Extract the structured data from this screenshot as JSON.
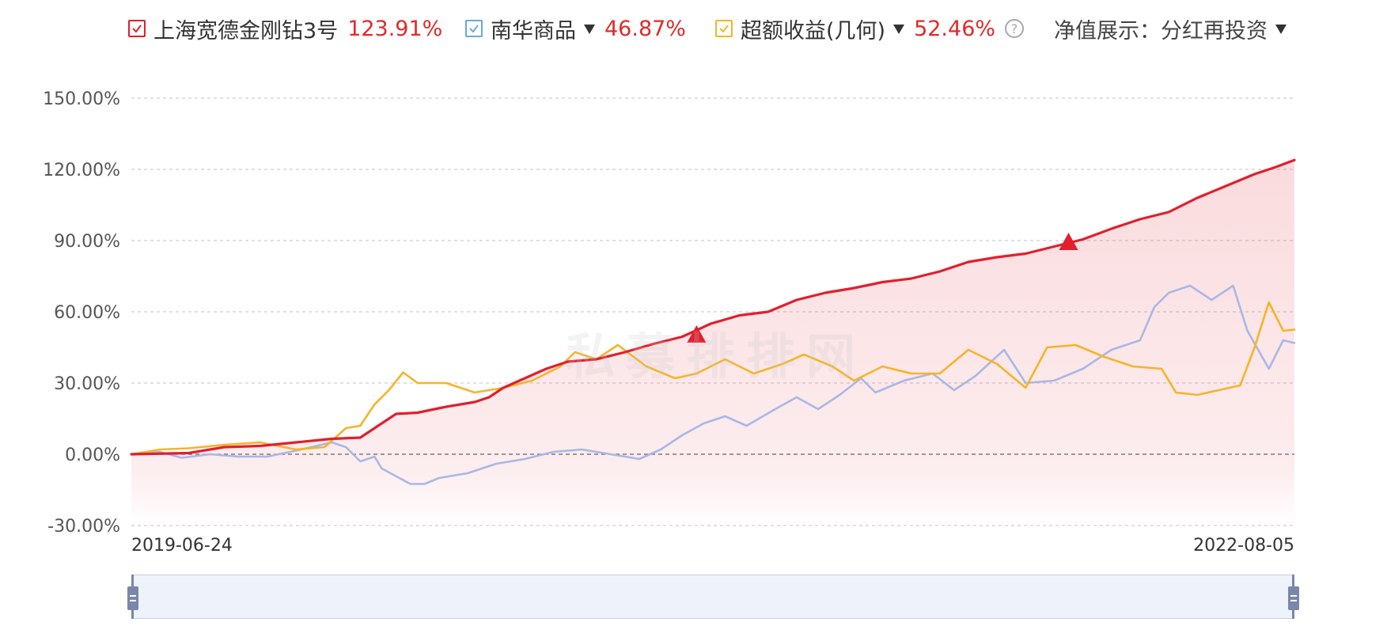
{
  "legend": {
    "fund": {
      "name": "上海宽德金刚钻3号",
      "value": "123.91%",
      "color": "#e0202e"
    },
    "index": {
      "name": "南华商品",
      "value": "46.87%",
      "color": "#a8b8e6",
      "checkbox_color": "#6aa8e0"
    },
    "excess": {
      "name": "超额收益(几何)",
      "value": "52.46%",
      "color": "#f5b42a"
    },
    "help_icon": "question-circle-icon",
    "nav_label": "净值展示：",
    "nav_value": "分红再投资"
  },
  "watermark": "私募排排网",
  "chart_data": {
    "type": "line",
    "xlabel": "",
    "ylabel": "",
    "x_start": "2019-06-24",
    "x_end": "2022-08-05",
    "x_tick_labels": [
      "2019-06-24",
      "2022-08-05"
    ],
    "ylim": [
      -30,
      150
    ],
    "y_ticks": [
      150,
      120,
      90,
      60,
      30,
      0,
      -30
    ],
    "y_tick_labels": [
      "150.00%",
      "120.00%",
      "90.00%",
      "60.00%",
      "30.00%",
      "0.00%",
      "-30.00%"
    ],
    "grid": true,
    "legend_position": "top",
    "markers": [
      {
        "series": "上海宽德金刚钻3号",
        "x": "2020-12-28",
        "y": 50,
        "shape": "triangle"
      },
      {
        "series": "上海宽德金刚钻3号",
        "x": "2021-12-27",
        "y": 89,
        "shape": "triangle"
      }
    ],
    "series": [
      {
        "name": "上海宽德金刚钻3号",
        "color": "#e0202e",
        "fill": true,
        "points": [
          [
            "2019-06-24",
            0
          ],
          [
            "2019-08-19",
            0.5
          ],
          [
            "2019-09-23",
            3
          ],
          [
            "2019-10-28",
            3.5
          ],
          [
            "2019-12-02",
            5
          ],
          [
            "2020-01-06",
            6.5
          ],
          [
            "2020-02-03",
            7
          ],
          [
            "2020-02-17",
            11
          ],
          [
            "2020-03-09",
            17
          ],
          [
            "2020-03-30",
            17.5
          ],
          [
            "2020-04-27",
            20
          ],
          [
            "2020-05-25",
            22
          ],
          [
            "2020-06-08",
            24
          ],
          [
            "2020-06-22",
            28
          ],
          [
            "2020-07-13",
            32
          ],
          [
            "2020-08-03",
            36
          ],
          [
            "2020-08-24",
            39
          ],
          [
            "2020-09-21",
            40
          ],
          [
            "2020-10-19",
            43
          ],
          [
            "2020-11-16",
            46.5
          ],
          [
            "2020-12-14",
            49.5
          ],
          [
            "2021-01-11",
            55
          ],
          [
            "2021-02-08",
            58.5
          ],
          [
            "2021-03-08",
            60
          ],
          [
            "2021-04-05",
            65
          ],
          [
            "2021-05-03",
            68
          ],
          [
            "2021-05-31",
            70
          ],
          [
            "2021-06-28",
            72.5
          ],
          [
            "2021-07-26",
            74
          ],
          [
            "2021-08-23",
            77
          ],
          [
            "2021-09-20",
            81
          ],
          [
            "2021-10-18",
            83
          ],
          [
            "2021-11-15",
            84.5
          ],
          [
            "2021-12-13",
            87.5
          ],
          [
            "2022-01-10",
            90.5
          ],
          [
            "2022-02-07",
            95
          ],
          [
            "2022-03-07",
            99
          ],
          [
            "2022-04-04",
            102
          ],
          [
            "2022-05-02",
            108
          ],
          [
            "2022-05-30",
            113
          ],
          [
            "2022-06-27",
            118
          ],
          [
            "2022-07-18",
            121
          ],
          [
            "2022-08-05",
            123.91
          ]
        ]
      },
      {
        "name": "南华商品",
        "color": "#a8b8e6",
        "fill": false,
        "points": [
          [
            "2019-06-24",
            0
          ],
          [
            "2019-07-22",
            1
          ],
          [
            "2019-08-12",
            -1.5
          ],
          [
            "2019-09-09",
            0
          ],
          [
            "2019-10-07",
            -1
          ],
          [
            "2019-11-04",
            -1
          ],
          [
            "2019-12-02",
            1.5
          ],
          [
            "2020-01-06",
            5
          ],
          [
            "2020-01-20",
            3
          ],
          [
            "2020-02-03",
            -3
          ],
          [
            "2020-02-17",
            -1
          ],
          [
            "2020-02-24",
            -6
          ],
          [
            "2020-03-23",
            -12.5
          ],
          [
            "2020-04-06",
            -12.5
          ],
          [
            "2020-04-20",
            -10
          ],
          [
            "2020-05-18",
            -8
          ],
          [
            "2020-06-15",
            -4
          ],
          [
            "2020-07-13",
            -2
          ],
          [
            "2020-08-10",
            1
          ],
          [
            "2020-09-07",
            2
          ],
          [
            "2020-10-05",
            0
          ],
          [
            "2020-11-02",
            -2
          ],
          [
            "2020-11-23",
            2
          ],
          [
            "2020-12-14",
            8
          ],
          [
            "2021-01-04",
            13
          ],
          [
            "2021-01-25",
            16
          ],
          [
            "2021-02-15",
            12
          ],
          [
            "2021-03-15",
            19
          ],
          [
            "2021-04-05",
            24
          ],
          [
            "2021-04-26",
            19
          ],
          [
            "2021-05-17",
            25
          ],
          [
            "2021-06-07",
            32
          ],
          [
            "2021-06-21",
            26
          ],
          [
            "2021-07-19",
            31
          ],
          [
            "2021-08-16",
            34
          ],
          [
            "2021-09-06",
            27
          ],
          [
            "2021-09-27",
            33
          ],
          [
            "2021-10-25",
            44
          ],
          [
            "2021-11-15",
            30
          ],
          [
            "2021-12-13",
            31
          ],
          [
            "2022-01-10",
            36
          ],
          [
            "2022-02-07",
            44
          ],
          [
            "2022-03-07",
            48
          ],
          [
            "2022-03-21",
            62
          ],
          [
            "2022-04-04",
            68
          ],
          [
            "2022-04-25",
            71
          ],
          [
            "2022-05-16",
            65
          ],
          [
            "2022-06-06",
            71
          ],
          [
            "2022-06-20",
            52
          ],
          [
            "2022-07-11",
            36
          ],
          [
            "2022-07-25",
            48
          ],
          [
            "2022-08-05",
            46.87
          ]
        ]
      },
      {
        "name": "超额收益(几何)",
        "color": "#f5b42a",
        "fill": false,
        "points": [
          [
            "2019-06-24",
            0
          ],
          [
            "2019-07-22",
            2
          ],
          [
            "2019-08-19",
            2.5
          ],
          [
            "2019-09-23",
            4
          ],
          [
            "2019-10-28",
            5
          ],
          [
            "2019-12-02",
            2
          ],
          [
            "2019-12-30",
            3
          ],
          [
            "2020-01-20",
            11
          ],
          [
            "2020-02-03",
            12
          ],
          [
            "2020-02-17",
            21
          ],
          [
            "2020-03-02",
            27
          ],
          [
            "2020-03-16",
            34.5
          ],
          [
            "2020-03-30",
            30
          ],
          [
            "2020-04-27",
            30
          ],
          [
            "2020-05-25",
            26
          ],
          [
            "2020-06-22",
            28
          ],
          [
            "2020-07-20",
            31
          ],
          [
            "2020-08-17",
            37
          ],
          [
            "2020-08-31",
            43
          ],
          [
            "2020-09-21",
            40
          ],
          [
            "2020-10-12",
            46
          ],
          [
            "2020-11-09",
            37
          ],
          [
            "2020-12-07",
            32
          ],
          [
            "2020-12-28",
            34
          ],
          [
            "2021-01-25",
            40
          ],
          [
            "2021-02-22",
            34
          ],
          [
            "2021-03-22",
            38
          ],
          [
            "2021-04-12",
            42
          ],
          [
            "2021-05-10",
            37
          ],
          [
            "2021-05-31",
            31
          ],
          [
            "2021-06-28",
            37
          ],
          [
            "2021-07-26",
            34
          ],
          [
            "2021-08-23",
            34
          ],
          [
            "2021-09-20",
            44
          ],
          [
            "2021-10-18",
            38
          ],
          [
            "2021-11-15",
            28
          ],
          [
            "2021-12-06",
            45
          ],
          [
            "2022-01-03",
            46
          ],
          [
            "2022-01-31",
            41
          ],
          [
            "2022-02-28",
            37
          ],
          [
            "2022-03-28",
            36
          ],
          [
            "2022-04-11",
            26
          ],
          [
            "2022-05-02",
            25
          ],
          [
            "2022-05-23",
            27
          ],
          [
            "2022-06-13",
            29
          ],
          [
            "2022-06-27",
            45
          ],
          [
            "2022-07-11",
            64
          ],
          [
            "2022-07-25",
            52
          ],
          [
            "2022-08-05",
            52.46
          ]
        ]
      }
    ],
    "zero_line": true,
    "range_slider": true
  }
}
